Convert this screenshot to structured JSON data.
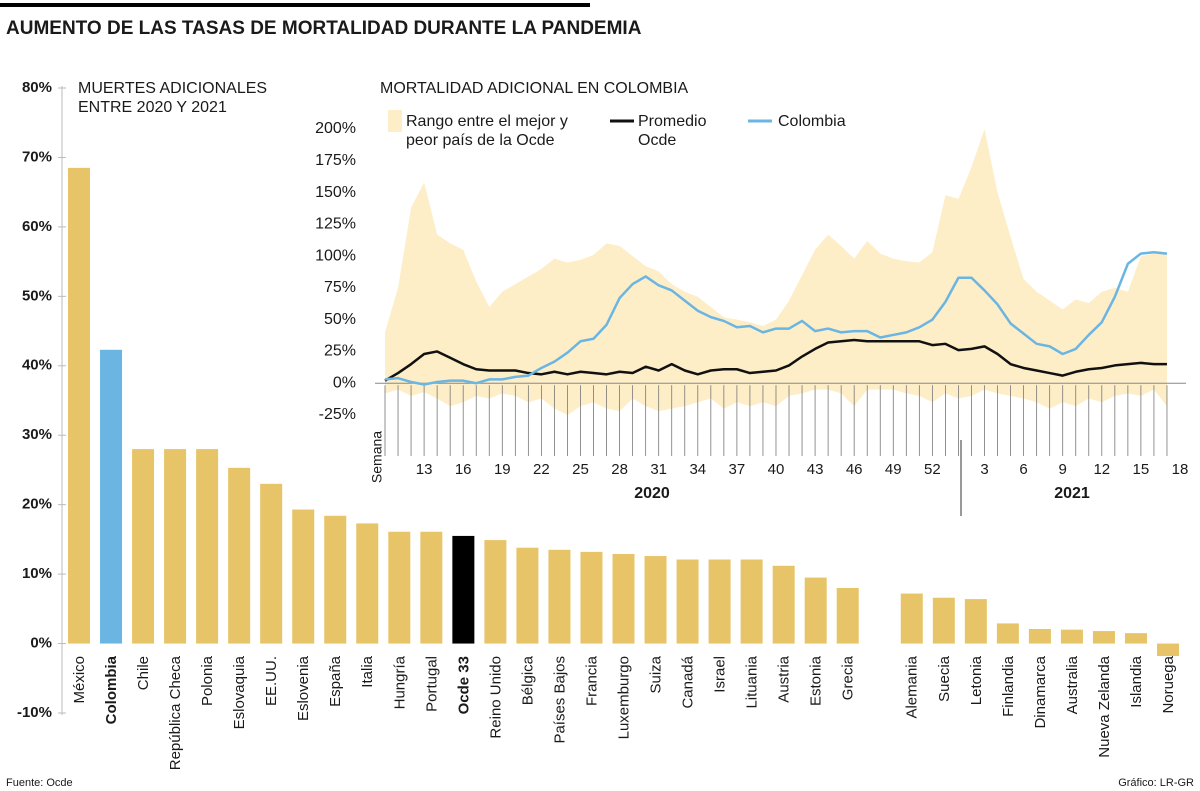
{
  "title": "AUMENTO DE LAS TASAS DE MORTALIDAD DURANTE LA PANDEMIA",
  "source": "Fuente: Ocde",
  "credit": "Gráfico: LR-GR",
  "chart_data": [
    {
      "type": "bar",
      "title": "MUERTES ADICIONALES ENTRE 2020 Y 2021",
      "categories": [
        "México",
        "Colombia",
        "Chile",
        "República Checa",
        "Polonia",
        "Eslovaquia",
        "EE.UU.",
        "Eslovenia",
        "España",
        "Italia",
        "Hungría",
        "Portugal",
        "Ocde 33",
        "Reino Unido",
        "Bélgica",
        "Países Bajos",
        "Francia",
        "Luxemburgo",
        "Suiza",
        "Canadá",
        "Israel",
        "Lituania",
        "Austria",
        "Estonia",
        "Grecia",
        null,
        "Alemania",
        "Suecia",
        "Letonia",
        "Finlandia",
        "Dinamarca",
        "Australia",
        "Nueva Zelanda",
        "Islandia",
        "Noruega"
      ],
      "values": [
        68.5,
        42.3,
        28,
        28,
        28,
        25.3,
        23,
        19.3,
        18.4,
        17.3,
        16.1,
        16.1,
        15.5,
        14.9,
        13.8,
        13.5,
        13.2,
        12.9,
        12.6,
        12.1,
        12.1,
        12.1,
        11.2,
        9.5,
        8,
        null,
        7.2,
        6.6,
        6.4,
        2.9,
        2.1,
        2,
        1.8,
        1.5,
        -1.8
      ],
      "color": "#e8c468",
      "colors": [
        "#e8c468",
        "#6bb5e3",
        "#e8c468",
        "#e8c468",
        "#e8c468",
        "#e8c468",
        "#e8c468",
        "#e8c468",
        "#e8c468",
        "#e8c468",
        "#e8c468",
        "#e8c468",
        "#000000",
        "#e8c468",
        "#e8c468",
        "#e8c468",
        "#e8c468",
        "#e8c468",
        "#e8c468",
        "#e8c468",
        "#e8c468",
        "#e8c468",
        "#e8c468",
        "#e8c468",
        "#e8c468",
        null,
        "#e8c468",
        "#e8c468",
        "#e8c468",
        "#e8c468",
        "#e8c468",
        "#e8c468",
        "#e8c468",
        "#e8c468",
        "#e8c468"
      ],
      "ylim": [
        -10,
        80
      ],
      "yticks": [
        {
          "value": -10,
          "label": "-10%"
        },
        {
          "value": 0,
          "label": "0%"
        },
        {
          "value": 10,
          "label": "10%"
        },
        {
          "value": 20,
          "label": "20%"
        },
        {
          "value": 30,
          "label": "30%"
        },
        {
          "value": 40,
          "label": "40%"
        },
        {
          "value": 50,
          "label": "50%"
        },
        {
          "value": 60,
          "label": "60%"
        },
        {
          "value": 70,
          "label": "70%"
        },
        {
          "value": 80,
          "label": "80%"
        }
      ]
    },
    {
      "type": "line",
      "title": "MORTALIDAD ADICIONAL EN COLOMBIA",
      "x_label": "Semana",
      "x_groups": [
        "2020",
        "2021"
      ],
      "categories": [
        null,
        null,
        null,
        "13",
        null,
        null,
        "16",
        null,
        null,
        "19",
        null,
        null,
        "22",
        null,
        null,
        "25",
        null,
        null,
        "28",
        null,
        null,
        "31",
        null,
        null,
        "34",
        null,
        null,
        "37",
        null,
        null,
        "40",
        null,
        null,
        "43",
        null,
        null,
        "46",
        null,
        null,
        "49",
        null,
        null,
        "52",
        null,
        null,
        null,
        "3",
        null,
        null,
        "6",
        null,
        null,
        "9",
        null,
        null,
        "12",
        null,
        null,
        "15",
        null,
        null,
        "18"
      ],
      "ylim": [
        -25,
        200
      ],
      "yticks": [
        {
          "value": -25,
          "label": "-25%"
        },
        {
          "value": 0,
          "label": "0%"
        },
        {
          "value": 25,
          "label": "25%"
        },
        {
          "value": 50,
          "label": "50%"
        },
        {
          "value": 75,
          "label": "75%"
        },
        {
          "value": 100,
          "label": "100%"
        },
        {
          "value": 125,
          "label": "125%"
        },
        {
          "value": 150,
          "label": "150%"
        },
        {
          "value": 175,
          "label": "175%"
        },
        {
          "value": 200,
          "label": "200%"
        }
      ],
      "series": [
        {
          "name": "Rango entre el mejor y peor país de la Ocde",
          "type": "band",
          "color": "#fdeec8",
          "highs": [
            40,
            75,
            138,
            158,
            117,
            110,
            105,
            80,
            60,
            72,
            78,
            84,
            90,
            98,
            95,
            97,
            101,
            110,
            108,
            100,
            92,
            88,
            78,
            72,
            68,
            60,
            52,
            50,
            48,
            45,
            50,
            65,
            85,
            105,
            117,
            108,
            98,
            112,
            102,
            98,
            96,
            95,
            103,
            148,
            145,
            170,
            200,
            150,
            115,
            82,
            72,
            65,
            58,
            66,
            63,
            72,
            75,
            72,
            100,
            102,
            102,
            null
          ],
          "lows": [
            -8,
            -5,
            -10,
            -7,
            -12,
            -18,
            -15,
            -10,
            -12,
            -8,
            -10,
            -15,
            -12,
            -20,
            -25,
            -18,
            -15,
            -20,
            -22,
            -12,
            -18,
            -22,
            -20,
            -18,
            -15,
            -12,
            -20,
            -15,
            -18,
            -15,
            -18,
            -10,
            -8,
            -5,
            -5,
            -8,
            -18,
            -5,
            -5,
            -5,
            -8,
            -10,
            -15,
            -8,
            -12,
            -10,
            -5,
            -8,
            -10,
            -12,
            -15,
            -20,
            -15,
            -18,
            -12,
            -15,
            -10,
            -8,
            -10,
            -5,
            -18,
            null
          ]
        },
        {
          "name": "Promedio Ocde",
          "color": "#111111",
          "values": [
            2,
            8,
            15,
            23,
            25,
            20,
            15,
            11,
            10,
            10,
            10,
            8,
            7,
            9,
            7,
            9,
            8,
            7,
            9,
            8,
            13,
            10,
            15,
            10,
            7,
            10,
            11,
            11,
            8,
            9,
            10,
            14,
            21,
            27,
            32,
            33,
            34,
            33,
            33,
            33,
            33,
            33,
            30,
            31,
            26,
            27,
            29,
            23,
            15,
            12,
            10,
            8,
            6,
            9,
            11,
            12,
            14,
            15,
            16,
            15,
            15,
            null
          ]
        },
        {
          "name": "Colombia",
          "color": "#6bb5e3",
          "values": [
            3,
            4,
            1,
            -1,
            1,
            2,
            2,
            0,
            3,
            3,
            5,
            6,
            12,
            17,
            24,
            33,
            35,
            46,
            67,
            78,
            84,
            77,
            73,
            65,
            57,
            52,
            49,
            44,
            45,
            40,
            43,
            43,
            49,
            41,
            43,
            40,
            41,
            41,
            36,
            38,
            40,
            44,
            50,
            64,
            83,
            83,
            73,
            62,
            47,
            39,
            31,
            29,
            23,
            27,
            38,
            48,
            68,
            94,
            102,
            103,
            102,
            null
          ]
        }
      ]
    }
  ]
}
